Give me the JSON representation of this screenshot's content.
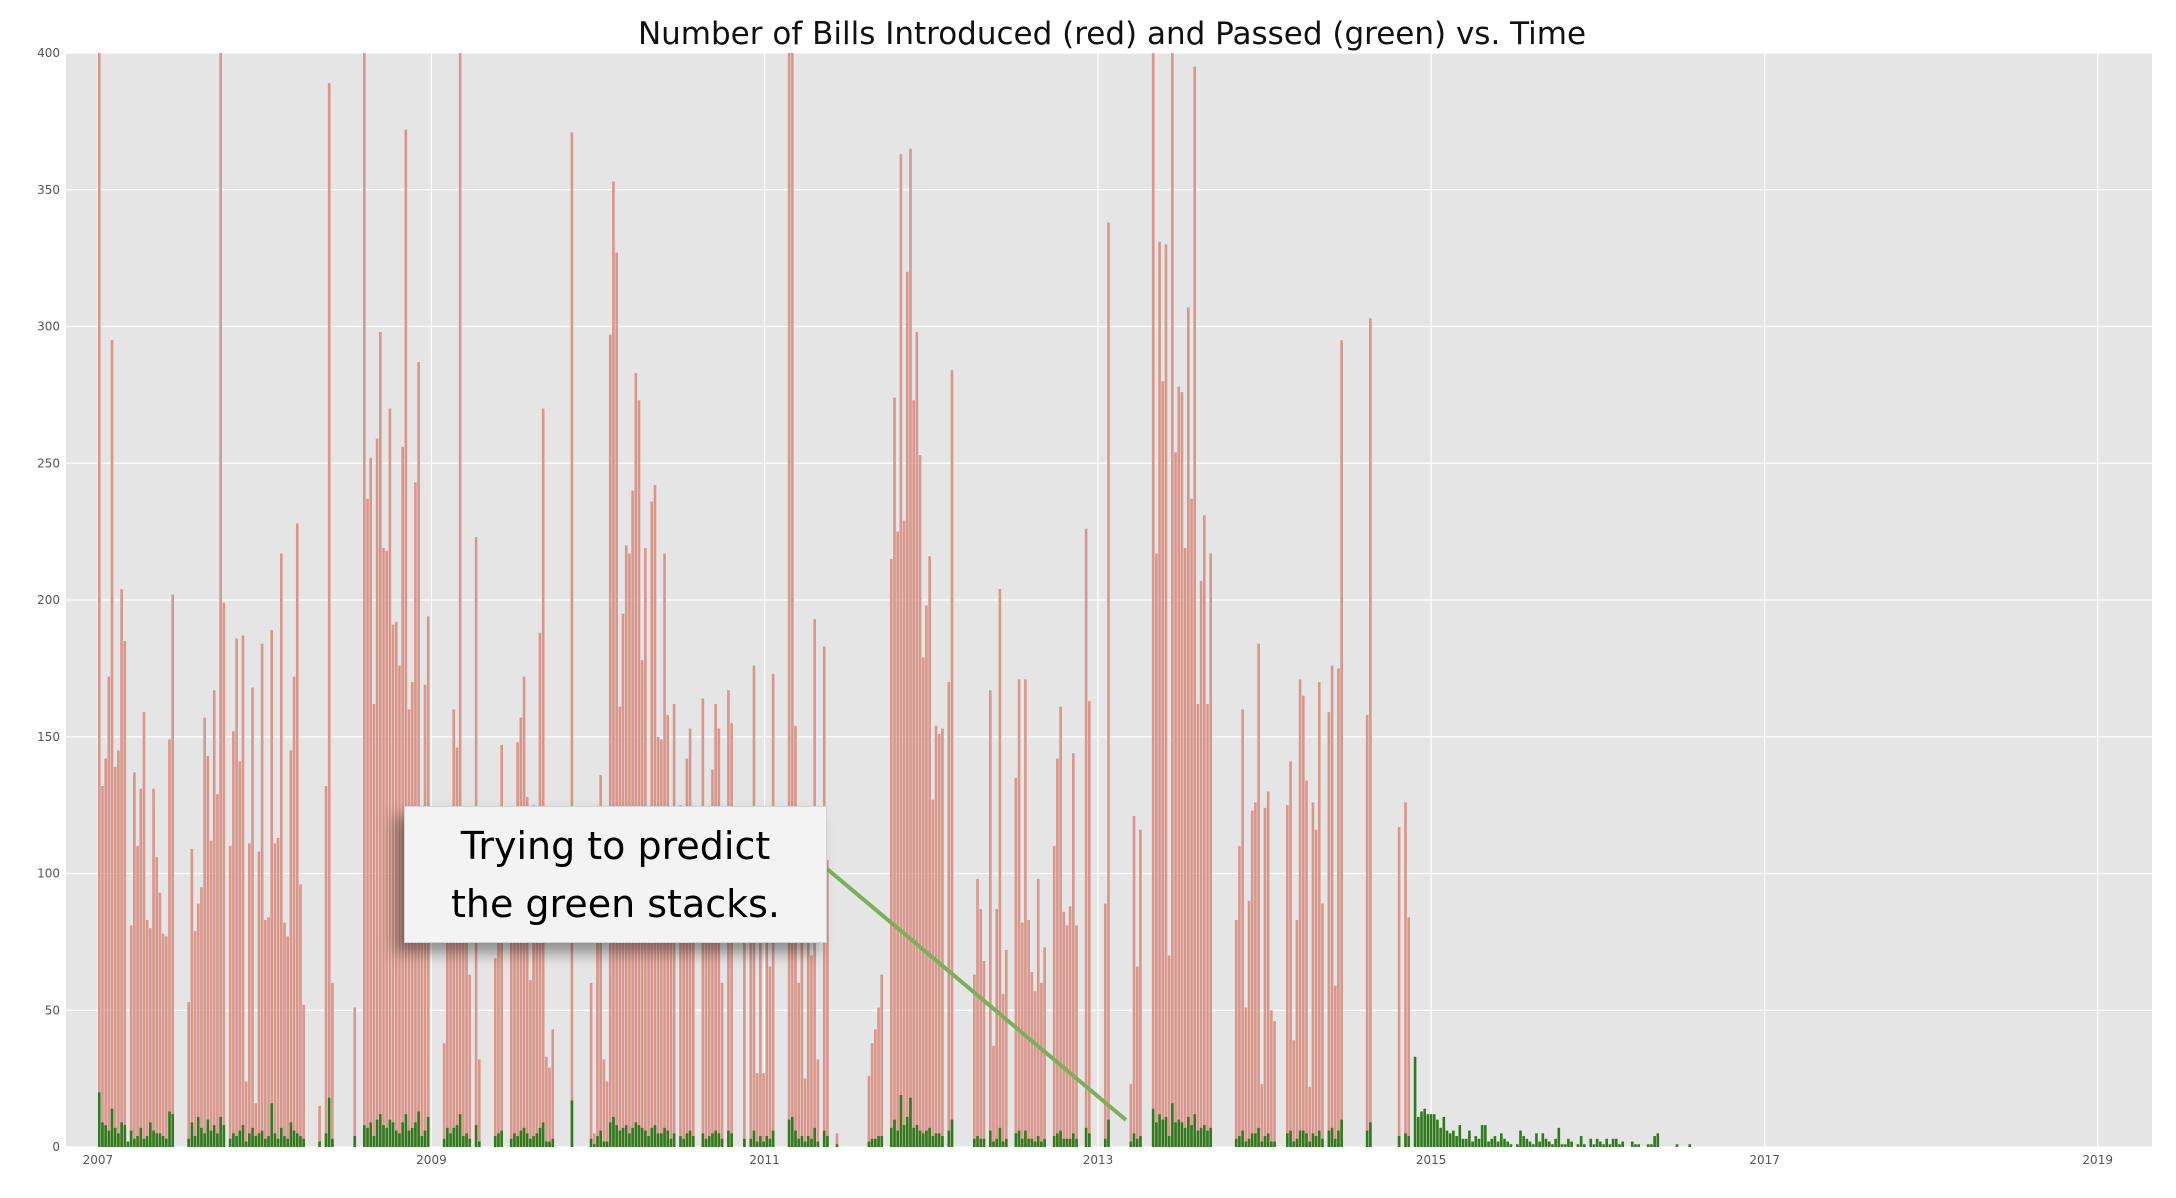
{
  "chart_data": {
    "type": "bar",
    "title": "Number of Bills Introduced (red) and Passed (green) vs. Time",
    "xlabel": "",
    "ylabel": "",
    "x_axis": {
      "type": "date",
      "range": [
        "2006-10-23",
        "2019-04-30"
      ],
      "ticks": [
        "2007",
        "2009",
        "2011",
        "2013",
        "2015",
        "2017",
        "2019"
      ]
    },
    "y_axis": {
      "range": [
        0,
        400
      ],
      "ticks": [
        "0",
        "50",
        "100",
        "150",
        "200",
        "250",
        "300",
        "350",
        "400"
      ]
    },
    "grid": true,
    "style": "ggplot",
    "colors": {
      "introduced": "#d9968a",
      "passed": "#2e7a1c",
      "annotation_line": "#7bb05a",
      "plot_bg": "#e5e5e5",
      "grid": "#ffffff"
    },
    "series": [
      {
        "name": "Introduced",
        "bin_width_days": 7,
        "start": "2007-01-01",
        "weekly_values": [
          400,
          132,
          142,
          172,
          295,
          139,
          145,
          204,
          185,
          0,
          81,
          137,
          110,
          131,
          159,
          83,
          80,
          131,
          106,
          93,
          78,
          77,
          149,
          202,
          0,
          0,
          0,
          0,
          53,
          109,
          79,
          89,
          95,
          157,
          143,
          112,
          167,
          129,
          400,
          199,
          0,
          110,
          152,
          186,
          141,
          187,
          24,
          111,
          168,
          16,
          108,
          184,
          83,
          84,
          189,
          111,
          113,
          217,
          82,
          77,
          145,
          172,
          228,
          96,
          52,
          0,
          0,
          0,
          0,
          15,
          0,
          132,
          389,
          60,
          0,
          0,
          0,
          0,
          0,
          0,
          51,
          0,
          0,
          400,
          237,
          252,
          162,
          259,
          298,
          219,
          218,
          270,
          191,
          192,
          176,
          256,
          372,
          160,
          170,
          243,
          287,
          95,
          169,
          194,
          0,
          0,
          0,
          0,
          38,
          88,
          120,
          160,
          146,
          400,
          88,
          92,
          63,
          0,
          223,
          32,
          0,
          0,
          0,
          0,
          69,
          108,
          147,
          0,
          0,
          75,
          101,
          148,
          157,
          172,
          128,
          61,
          125,
          121,
          188,
          270,
          33,
          29,
          43,
          0,
          0,
          0,
          0,
          0,
          371,
          0,
          0,
          0,
          0,
          0,
          60,
          5,
          90,
          136,
          32,
          24,
          297,
          353,
          327,
          161,
          195,
          220,
          217,
          240,
          283,
          273,
          178,
          219,
          121,
          236,
          242,
          150,
          149,
          217,
          158,
          77,
          162,
          0,
          125,
          91,
          142,
          153,
          101,
          0,
          0,
          164,
          94,
          109,
          138,
          162,
          153,
          60,
          0,
          167,
          155,
          0,
          0,
          0,
          91,
          0,
          87,
          176,
          27,
          91,
          27,
          103,
          66,
          173,
          0,
          0,
          0,
          0,
          400,
          400,
          154,
          60,
          105,
          25,
          106,
          70,
          193,
          32,
          0,
          183,
          105,
          0,
          0,
          5,
          0,
          0,
          0,
          0,
          0,
          0,
          0,
          0,
          0,
          26,
          38,
          43,
          51,
          63,
          0,
          0,
          215,
          274,
          225,
          363,
          229,
          320,
          365,
          273,
          298,
          253,
          179,
          198,
          216,
          127,
          154,
          151,
          153,
          0,
          170,
          284,
          0,
          0,
          0,
          0,
          0,
          0,
          63,
          98,
          87,
          68,
          0,
          167,
          37,
          87,
          204,
          56,
          72,
          0,
          0,
          135,
          171,
          82,
          171,
          83,
          64,
          57,
          98,
          60,
          73,
          0,
          0,
          110,
          142,
          161,
          86,
          81,
          88,
          144,
          81,
          0,
          0,
          226,
          163,
          0,
          0,
          0,
          0,
          89,
          338,
          0,
          0,
          0,
          0,
          0,
          0,
          23,
          121,
          66,
          116,
          0,
          0,
          0,
          400,
          217,
          331,
          280,
          330,
          70,
          400,
          254,
          278,
          276,
          219,
          307,
          237,
          395,
          162,
          207,
          231,
          162,
          217,
          0,
          0,
          0,
          0,
          0,
          0,
          0,
          83,
          110,
          160,
          51,
          90,
          123,
          126,
          184,
          23,
          124,
          130,
          50,
          46,
          0,
          0,
          0,
          125,
          141,
          39,
          83,
          171,
          165,
          134,
          22,
          126,
          116,
          170,
          89,
          0,
          159,
          176,
          59,
          175,
          295,
          0,
          0,
          0,
          0,
          0,
          0,
          0,
          158,
          303,
          0,
          0,
          0,
          0,
          0,
          0,
          0,
          0,
          117,
          0,
          126,
          84,
          0,
          0
        ]
      },
      {
        "name": "Passed",
        "bin_width_days": 7,
        "start": "2007-01-01",
        "weekly_values": [
          20,
          9,
          8,
          6,
          14,
          7,
          5,
          9,
          8,
          2,
          6,
          3,
          4,
          7,
          3,
          4,
          9,
          6,
          5,
          5,
          4,
          3,
          13,
          12,
          0,
          0,
          0,
          0,
          3,
          9,
          4,
          11,
          7,
          5,
          10,
          6,
          8,
          5,
          11,
          8,
          0,
          3,
          5,
          4,
          6,
          8,
          2,
          5,
          7,
          4,
          5,
          6,
          3,
          4,
          16,
          5,
          3,
          7,
          4,
          3,
          9,
          6,
          5,
          4,
          3,
          0,
          0,
          0,
          0,
          2,
          0,
          5,
          18,
          3,
          0,
          0,
          0,
          0,
          0,
          0,
          4,
          0,
          0,
          8,
          7,
          9,
          4,
          10,
          12,
          8,
          7,
          10,
          9,
          6,
          5,
          9,
          12,
          6,
          7,
          9,
          13,
          4,
          6,
          11,
          0,
          0,
          0,
          0,
          3,
          7,
          5,
          7,
          8,
          12,
          4,
          5,
          3,
          0,
          8,
          2,
          0,
          0,
          0,
          0,
          4,
          5,
          6,
          0,
          0,
          3,
          5,
          4,
          6,
          7,
          5,
          3,
          4,
          5,
          7,
          9,
          2,
          2,
          3,
          0,
          0,
          0,
          0,
          0,
          17,
          0,
          0,
          0,
          0,
          0,
          3,
          1,
          4,
          6,
          2,
          2,
          9,
          11,
          8,
          6,
          7,
          8,
          5,
          7,
          9,
          8,
          7,
          6,
          4,
          7,
          8,
          5,
          5,
          7,
          6,
          3,
          5,
          0,
          4,
          3,
          5,
          6,
          4,
          0,
          0,
          5,
          3,
          4,
          5,
          6,
          5,
          3,
          0,
          6,
          5,
          0,
          0,
          0,
          3,
          0,
          3,
          6,
          2,
          4,
          2,
          4,
          3,
          6,
          0,
          0,
          0,
          0,
          10,
          11,
          6,
          3,
          4,
          2,
          4,
          3,
          7,
          2,
          0,
          6,
          4,
          0,
          0,
          1,
          0,
          0,
          0,
          0,
          0,
          0,
          0,
          0,
          0,
          2,
          3,
          3,
          4,
          4,
          0,
          0,
          7,
          10,
          6,
          19,
          8,
          11,
          18,
          7,
          8,
          6,
          5,
          6,
          7,
          4,
          5,
          5,
          4,
          0,
          6,
          10,
          0,
          0,
          0,
          0,
          0,
          0,
          3,
          4,
          3,
          3,
          0,
          6,
          2,
          3,
          7,
          2,
          3,
          0,
          0,
          5,
          6,
          3,
          6,
          3,
          3,
          2,
          4,
          2,
          3,
          0,
          0,
          4,
          5,
          6,
          3,
          3,
          3,
          5,
          3,
          0,
          0,
          7,
          5,
          0,
          0,
          0,
          0,
          3,
          10,
          0,
          0,
          0,
          0,
          0,
          0,
          2,
          5,
          3,
          4,
          0,
          0,
          0,
          14,
          9,
          12,
          10,
          11,
          4,
          16,
          9,
          10,
          9,
          7,
          11,
          8,
          12,
          6,
          7,
          8,
          6,
          7,
          0,
          0,
          0,
          0,
          0,
          0,
          0,
          3,
          4,
          6,
          2,
          3,
          5,
          5,
          7,
          2,
          4,
          5,
          2,
          2,
          0,
          0,
          0,
          5,
          6,
          2,
          3,
          6,
          6,
          5,
          2,
          5,
          4,
          6,
          3,
          0,
          6,
          7,
          3,
          6,
          10,
          0,
          0,
          0,
          0,
          0,
          0,
          0,
          6,
          9,
          0,
          0,
          0,
          0,
          0,
          0,
          0,
          0,
          4,
          0,
          5,
          4,
          0,
          33,
          11,
          13,
          14,
          12,
          12,
          12,
          10,
          7,
          11,
          6,
          5,
          6,
          4,
          8,
          3,
          3,
          6,
          2,
          4,
          3,
          8,
          8,
          2,
          3,
          4,
          2,
          5,
          3,
          2,
          1,
          0,
          1,
          6,
          4,
          3,
          2,
          1,
          5,
          2,
          5,
          3,
          2,
          1,
          3,
          7,
          1,
          1,
          3,
          2,
          0,
          1,
          4,
          1,
          0,
          3,
          1,
          3,
          2,
          1,
          3,
          1,
          3,
          3,
          1,
          2,
          0,
          0,
          2,
          1,
          1,
          0,
          0,
          1,
          1,
          4,
          5,
          0,
          0,
          0,
          0,
          0,
          1,
          0,
          0,
          0,
          1,
          0,
          0,
          0,
          0,
          0,
          0,
          0,
          0,
          0,
          0,
          0,
          0,
          0,
          0,
          0
        ]
      }
    ],
    "annotations": [
      {
        "text_lines": [
          "Trying to predict",
          "the green stacks."
        ]
      }
    ]
  }
}
